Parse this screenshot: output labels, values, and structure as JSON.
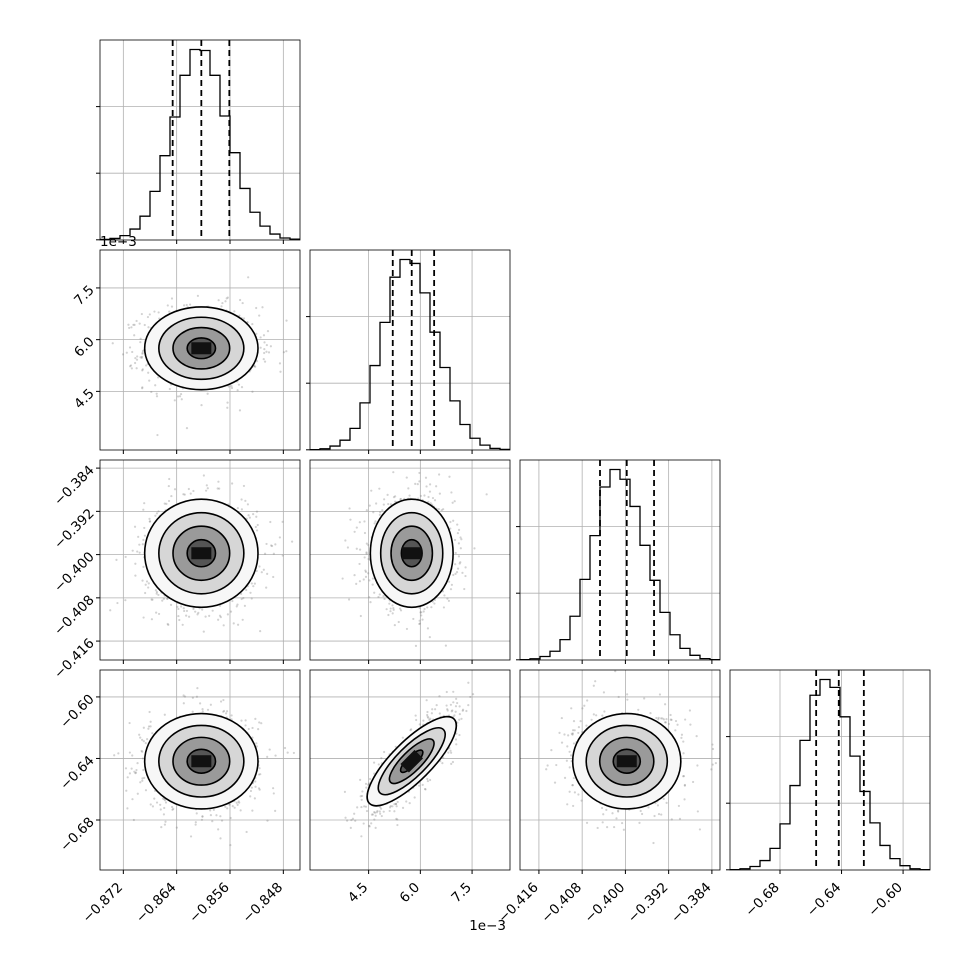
{
  "chart_data": {
    "type": "corner",
    "description_source": "corner plot of 4 parameters",
    "parameters": [
      {
        "index": 0,
        "range": [
          -0.8755,
          -0.8455
        ],
        "ticks": [
          -0.872,
          -0.864,
          -0.856,
          -0.848
        ],
        "tick_labels": [
          "−0.872",
          "−0.864",
          "−0.856",
          "−0.848"
        ],
        "offset_label": "",
        "median": -0.8603,
        "q16": -0.8646,
        "q84": -0.8561,
        "hist_bin_edges_start": -0.8755,
        "hist_bin_width": 0.0015,
        "hist_counts": [
          3,
          8,
          22,
          55,
          120,
          245,
          425,
          620,
          830,
          960,
          955,
          830,
          625,
          440,
          260,
          140,
          70,
          30,
          10,
          4
        ]
      },
      {
        "index": 1,
        "range": [
          0.0028,
          0.0086
        ],
        "ticks": [
          0.0045,
          0.006,
          0.0075
        ],
        "tick_labels": [
          "4.5",
          "6.0",
          "7.5"
        ],
        "offset_label": "1e−3",
        "median": 0.00575,
        "q16": 0.0052,
        "q84": 0.0064,
        "hist_bin_edges_start": 0.0028,
        "hist_bin_width": 0.00029,
        "hist_counts": [
          2,
          6,
          20,
          50,
          110,
          240,
          430,
          650,
          880,
          970,
          950,
          800,
          600,
          420,
          250,
          130,
          60,
          25,
          8,
          3
        ]
      },
      {
        "index": 2,
        "range": [
          -0.4195,
          -0.3825
        ],
        "ticks": [
          -0.416,
          -0.408,
          -0.4,
          -0.392,
          -0.384
        ],
        "tick_labels": [
          "−0.416",
          "−0.408",
          "−0.400",
          "−0.392",
          "−0.384"
        ],
        "offset_label": "",
        "median": -0.39975,
        "q16": -0.4047,
        "q84": -0.3947,
        "hist_bin_edges_start": -0.4195,
        "hist_bin_width": 0.00185,
        "hist_counts": [
          2,
          6,
          18,
          45,
          105,
          225,
          415,
          640,
          890,
          980,
          930,
          790,
          590,
          410,
          245,
          130,
          60,
          24,
          7,
          2
        ]
      },
      {
        "index": 3,
        "range": [
          -0.7125,
          -0.5825
        ],
        "ticks": [
          -0.68,
          -0.64,
          -0.6
        ],
        "tick_labels": [
          "−0.68",
          "−0.64",
          "−0.60"
        ],
        "offset_label": "",
        "median": -0.6418,
        "q16": -0.6565,
        "q84": -0.6255,
        "hist_bin_edges_start": -0.7125,
        "hist_bin_width": 0.0065,
        "hist_counts": [
          2,
          6,
          18,
          48,
          110,
          235,
          430,
          660,
          890,
          970,
          930,
          780,
          580,
          400,
          240,
          125,
          58,
          22,
          6,
          2
        ]
      }
    ],
    "correlations": {
      "1-0": 0.0,
      "2-0": 0.0,
      "2-1": 0.0,
      "3-0": 0.0,
      "3-1": 0.8,
      "3-2": 0.0
    },
    "contour_levels_sigma": [
      0.5,
      1.0,
      1.5,
      2.0
    ],
    "quantiles": [
      0.16,
      0.5,
      0.84
    ],
    "grid": true,
    "colors": {
      "line": "#000000",
      "grid": "#b0b0b0",
      "points": "#7f7f7f"
    }
  }
}
